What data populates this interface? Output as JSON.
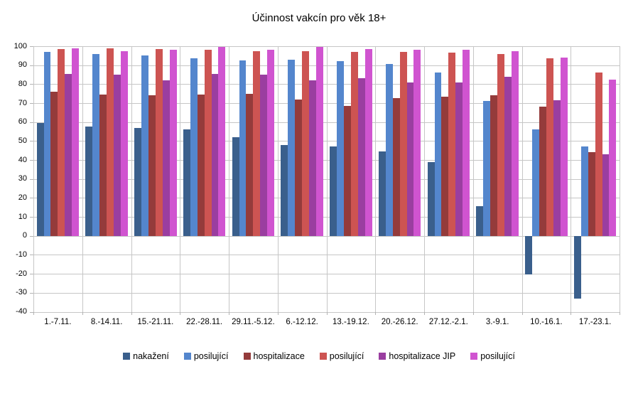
{
  "chart_data": {
    "type": "bar",
    "title": "Účinnost vakcín pro věk 18+",
    "categories": [
      "1.-7.11.",
      "8.-14.11.",
      "15.-21.11.",
      "22.-28.11.",
      "29.11.-5.12.",
      "6.-12.12.",
      "13.-19.12.",
      "20.-26.12.",
      "27.12.-2.1.",
      "3.-9.1.",
      "10.-16.1.",
      "17.-23.1."
    ],
    "series": [
      {
        "name": "nakažení",
        "color": "#3A5F8C",
        "values": [
          59.5,
          57.5,
          57,
          56,
          52,
          48,
          47,
          44.5,
          39,
          15.5,
          -20.5,
          -33
        ]
      },
      {
        "name": "posilující",
        "color": "#5486CD",
        "values": [
          97,
          96,
          95,
          93.5,
          92.5,
          93,
          92,
          90.5,
          86,
          71,
          56,
          47
        ]
      },
      {
        "name": "hospitalizace",
        "color": "#943B3B",
        "values": [
          76,
          74.5,
          74,
          74.5,
          75,
          72,
          68.5,
          72.5,
          73.5,
          74,
          68,
          44
        ]
      },
      {
        "name": "posilující",
        "color": "#CD5452",
        "values": [
          98.5,
          99,
          98.5,
          98,
          97.5,
          97.5,
          97,
          97,
          96.5,
          96,
          93.5,
          86
        ]
      },
      {
        "name": "hospitalizace JIP",
        "color": "#9A3EA0",
        "values": [
          85.5,
          85,
          82,
          85.5,
          85,
          82,
          83,
          81,
          81,
          84,
          71.5,
          43
        ]
      },
      {
        "name": "posilující",
        "color": "#D054D0",
        "values": [
          99,
          97.5,
          98,
          99.5,
          98,
          99.5,
          98.5,
          98,
          98,
          97.5,
          94,
          82.5
        ]
      }
    ],
    "ylim": [
      -40,
      100
    ],
    "yticks": [
      100,
      90,
      80,
      70,
      60,
      50,
      40,
      30,
      20,
      10,
      0,
      -10,
      -20,
      -30,
      -40
    ],
    "grid": true,
    "legend_position": "bottom",
    "grid_color": "#c6c6c6",
    "background": "#ffffff",
    "text_color": "#000000"
  }
}
